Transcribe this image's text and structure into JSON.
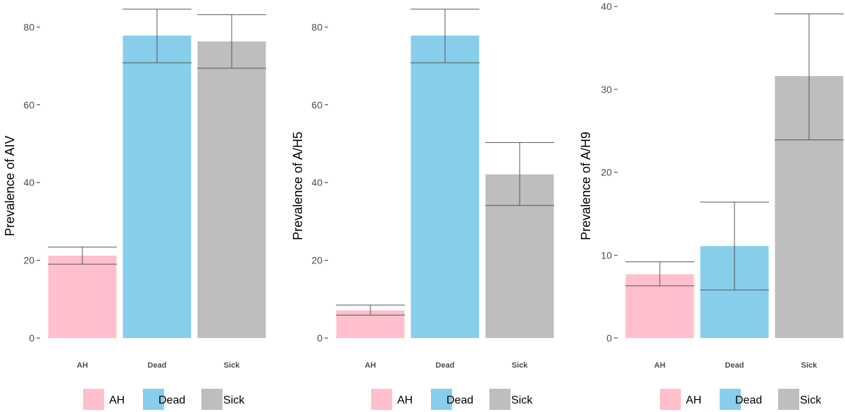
{
  "chart_data": [
    {
      "type": "bar",
      "title": "",
      "xlabel": "",
      "ylabel": "Prevalence of AIV",
      "categories": [
        "AH",
        "Dead",
        "Sick"
      ],
      "values": [
        21.2,
        77.8,
        76.3
      ],
      "error_low": [
        19.0,
        70.8,
        69.4
      ],
      "error_high": [
        23.4,
        84.6,
        83.2
      ],
      "ylim": [
        0,
        85.5
      ],
      "yticks": [
        0,
        20,
        40,
        60,
        80
      ],
      "colors": [
        "#ffc0cb",
        "#87ceeb",
        "#bebebe"
      ],
      "legend": {
        "position": "bottom",
        "entries": [
          "AH",
          "Dead",
          "Sick"
        ]
      }
    },
    {
      "type": "bar",
      "title": "",
      "xlabel": "",
      "ylabel": "Prevalence of A/H5",
      "categories": [
        "AH",
        "Dead",
        "Sick"
      ],
      "values": [
        7.1,
        77.8,
        42.1
      ],
      "error_low": [
        5.9,
        70.8,
        34.1
      ],
      "error_high": [
        8.5,
        84.6,
        50.3
      ],
      "ylim": [
        0,
        85.5
      ],
      "yticks": [
        0,
        20,
        40,
        60,
        80
      ],
      "colors": [
        "#ffc0cb",
        "#87ceeb",
        "#bebebe"
      ],
      "legend": {
        "position": "bottom",
        "entries": [
          "AH",
          "Dead",
          "Sick"
        ]
      }
    },
    {
      "type": "bar",
      "title": "",
      "xlabel": "",
      "ylabel": "Prevalence of A/H9",
      "categories": [
        "AH",
        "Dead",
        "Sick"
      ],
      "values": [
        7.7,
        11.1,
        31.6
      ],
      "error_low": [
        6.3,
        5.8,
        23.9
      ],
      "error_high": [
        9.2,
        16.4,
        39.1
      ],
      "ylim": [
        0,
        40.1
      ],
      "yticks": [
        0,
        10,
        20,
        30,
        40
      ],
      "colors": [
        "#ffc0cb",
        "#87ceeb",
        "#bebebe"
      ],
      "legend": {
        "position": "bottom",
        "entries": [
          "AH",
          "Dead",
          "Sick"
        ]
      }
    }
  ]
}
